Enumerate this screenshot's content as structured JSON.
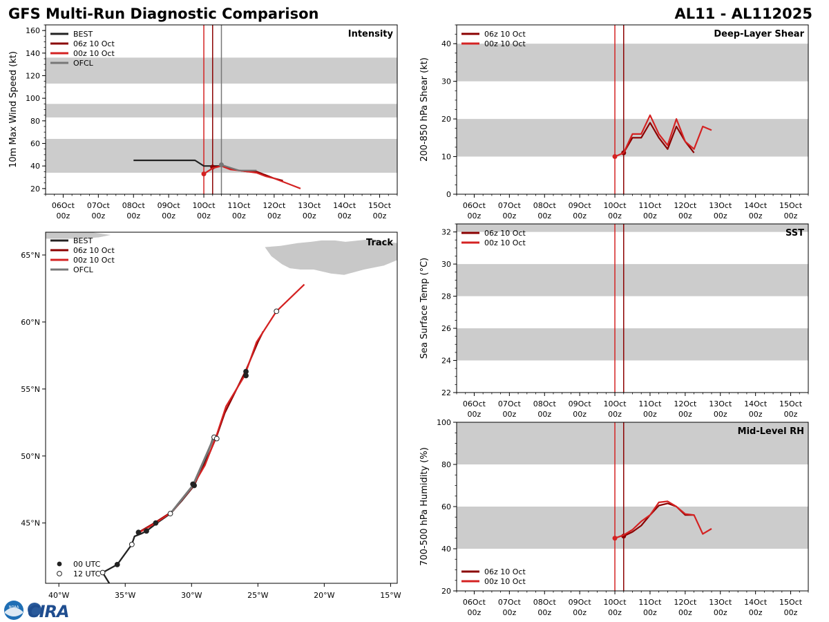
{
  "header": {
    "title": "GFS Multi-Run Diagnostic Comparison",
    "storm_id": "AL11 - AL112025"
  },
  "logos": {
    "noaa": "NOAA",
    "cira": "CIRA"
  },
  "colors": {
    "best": "#222222",
    "run_06z": "#8b0000",
    "run_00z": "#d42222",
    "ofcl": "#777777",
    "band": "#cccccc",
    "land": "#c8c8c8"
  },
  "time_axis": {
    "ticks": [
      "06Oct",
      "07Oct",
      "08Oct",
      "09Oct",
      "10Oct",
      "11Oct",
      "12Oct",
      "13Oct",
      "14Oct",
      "15Oct"
    ],
    "sublabel": "00z",
    "note": "x values are days since 06Oct 00z"
  },
  "chart_data": [
    {
      "id": "intensity",
      "type": "line",
      "title": "Intensity",
      "ylabel": "10m Max Wind Speed (kt)",
      "xlim": [
        -0.5,
        9.5
      ],
      "ylim": [
        15,
        165
      ],
      "yticks": [
        20,
        40,
        60,
        80,
        100,
        120,
        140,
        160
      ],
      "bands": [
        [
          34,
          64
        ],
        [
          83,
          95
        ],
        [
          113,
          136
        ]
      ],
      "vlines": [
        {
          "x": 4.0,
          "series": "run_00z"
        },
        {
          "x": 4.25,
          "series": "run_06z"
        },
        {
          "x": 4.5,
          "series": "ofcl"
        }
      ],
      "legend": [
        {
          "label": "BEST",
          "series": "best"
        },
        {
          "label": "06z 10 Oct",
          "series": "run_06z"
        },
        {
          "label": "00z 10 Oct",
          "series": "run_00z"
        },
        {
          "label": "OFCL",
          "series": "ofcl"
        }
      ],
      "series": [
        {
          "name": "BEST",
          "key": "best",
          "x": [
            2.0,
            2.25,
            2.5,
            2.75,
            3.0,
            3.25,
            3.5,
            3.75,
            4.0,
            4.25,
            4.5
          ],
          "y": [
            45,
            45,
            45,
            45,
            45,
            45,
            45,
            45,
            40,
            40,
            40
          ]
        },
        {
          "name": "06z 10 Oct",
          "key": "run_06z",
          "x": [
            4.25,
            4.5,
            4.75,
            5.0,
            5.25,
            5.5,
            5.75,
            6.0,
            6.25
          ],
          "y": [
            39,
            40,
            38,
            36,
            35,
            35,
            32,
            29,
            27
          ],
          "marker": true
        },
        {
          "name": "00z 10 Oct",
          "key": "run_00z",
          "x": [
            4.0,
            4.25,
            4.5,
            4.75,
            5.0,
            5.25,
            5.5,
            5.75,
            6.0,
            6.25,
            6.5,
            6.75
          ],
          "y": [
            33,
            38,
            40,
            37,
            36,
            35,
            34,
            31,
            29,
            26,
            23,
            20
          ],
          "marker": true
        },
        {
          "name": "OFCL",
          "key": "ofcl",
          "x": [
            4.5,
            5.0,
            5.5
          ],
          "y": [
            41,
            36,
            36
          ],
          "marker": true
        }
      ]
    },
    {
      "id": "shear",
      "type": "line",
      "title": "Deep-Layer Shear",
      "ylabel": "200-850 hPa Shear (kt)",
      "xlim": [
        -0.5,
        9.5
      ],
      "ylim": [
        0,
        45
      ],
      "yticks": [
        0,
        10,
        20,
        30,
        40
      ],
      "bands": [
        [
          10,
          20
        ],
        [
          30,
          40
        ]
      ],
      "vlines": [
        {
          "x": 4.0,
          "series": "run_00z"
        },
        {
          "x": 4.25,
          "series": "run_06z"
        }
      ],
      "legend": [
        {
          "label": "06z 10 Oct",
          "series": "run_06z"
        },
        {
          "label": "00z 10 Oct",
          "series": "run_00z"
        }
      ],
      "series": [
        {
          "name": "06z 10 Oct",
          "key": "run_06z",
          "x": [
            4.25,
            4.5,
            4.75,
            5.0,
            5.25,
            5.5,
            5.75,
            6.0,
            6.25
          ],
          "y": [
            11,
            15,
            15,
            19,
            15,
            12,
            18,
            14,
            11
          ],
          "marker": true
        },
        {
          "name": "00z 10 Oct",
          "key": "run_00z",
          "x": [
            4.0,
            4.25,
            4.5,
            4.75,
            5.0,
            5.25,
            5.5,
            5.75,
            6.0,
            6.25,
            6.5,
            6.75
          ],
          "y": [
            10,
            11,
            16,
            16,
            21,
            16,
            13,
            20,
            14,
            12,
            18,
            17
          ],
          "marker": true
        }
      ]
    },
    {
      "id": "sst",
      "type": "line",
      "title": "SST",
      "ylabel": "Sea Surface Temp (°C)",
      "xlim": [
        -0.5,
        9.5
      ],
      "ylim": [
        22,
        32.5
      ],
      "yticks": [
        22,
        24,
        26,
        28,
        30,
        32
      ],
      "bands": [
        [
          24,
          26
        ],
        [
          28,
          30
        ],
        [
          32,
          32.5
        ]
      ],
      "vlines": [
        {
          "x": 4.0,
          "series": "run_00z"
        },
        {
          "x": 4.25,
          "series": "run_06z"
        }
      ],
      "legend": [
        {
          "label": "06z 10 Oct",
          "series": "run_06z"
        },
        {
          "label": "00z 10 Oct",
          "series": "run_00z"
        }
      ],
      "series": []
    },
    {
      "id": "rh",
      "type": "line",
      "title": "Mid-Level RH",
      "ylabel": "700-500 hPa Humidity (%)",
      "xlim": [
        -0.5,
        9.5
      ],
      "ylim": [
        20,
        100
      ],
      "yticks": [
        20,
        40,
        60,
        80,
        100
      ],
      "bands": [
        [
          40,
          60
        ],
        [
          80,
          100
        ]
      ],
      "vlines": [
        {
          "x": 4.0,
          "series": "run_00z"
        },
        {
          "x": 4.25,
          "series": "run_06z"
        }
      ],
      "legend": [
        {
          "label": "06z 10 Oct",
          "series": "run_06z"
        },
        {
          "label": "00z 10 Oct",
          "series": "run_00z"
        }
      ],
      "series": [
        {
          "name": "06z 10 Oct",
          "key": "run_06z",
          "x": [
            4.25,
            4.5,
            4.75,
            5.0,
            5.25,
            5.5,
            5.75,
            6.0,
            6.25
          ],
          "y": [
            46,
            48,
            51,
            56,
            60.5,
            61.5,
            60,
            56,
            56
          ],
          "marker": true
        },
        {
          "name": "00z 10 Oct",
          "key": "run_00z",
          "x": [
            4.0,
            4.25,
            4.5,
            4.75,
            5.0,
            5.25,
            5.5,
            5.75,
            6.0,
            6.25,
            6.5,
            6.75
          ],
          "y": [
            45,
            46.5,
            49,
            53,
            56,
            62,
            62.5,
            60,
            56.5,
            56,
            47,
            49.5
          ],
          "marker": true
        }
      ]
    },
    {
      "id": "track",
      "type": "scatter",
      "title": "Track",
      "xlim": [
        -41,
        -14.5
      ],
      "ylim": [
        40.5,
        66.7
      ],
      "xticks": [
        -40,
        -35,
        -30,
        -25,
        -20,
        -15
      ],
      "xtick_labels": [
        "40°W",
        "35°W",
        "30°W",
        "25°W",
        "20°W",
        "15°W"
      ],
      "yticks": [
        45,
        50,
        55,
        60,
        65
      ],
      "ytick_labels": [
        "45°N",
        "50°N",
        "55°N",
        "60°N",
        "65°N"
      ],
      "legend": [
        {
          "label": "BEST",
          "series": "best"
        },
        {
          "label": "06z 10 Oct",
          "series": "run_06z"
        },
        {
          "label": "00z 10 Oct",
          "series": "run_00z"
        },
        {
          "label": "OFCL",
          "series": "ofcl"
        }
      ],
      "marker_legend": [
        "00 UTC",
        "12 UTC"
      ],
      "series": [
        {
          "name": "BEST",
          "key": "best",
          "lon": [
            -36.2,
            -36.7,
            -35.6,
            -34.5,
            -34.3,
            -33.8,
            -33.4,
            -32.6,
            -31.6,
            -30.7,
            -29.8,
            -29.0,
            -28.4,
            -28.2
          ],
          "lat": [
            40.5,
            41.3,
            41.9,
            43.4,
            44.0,
            44.2,
            44.4,
            45.0,
            45.7,
            46.7,
            47.8,
            49.6,
            51.3,
            51.5
          ]
        },
        {
          "name": "06z 10 Oct",
          "key": "run_06z",
          "lon": [
            -34.0,
            -32.8,
            -31.4,
            -29.9,
            -28.9,
            -28.1,
            -27.5,
            -25.9,
            -25.0,
            -24.6
          ],
          "lat": [
            44.3,
            45.0,
            45.9,
            47.7,
            49.6,
            51.5,
            53.2,
            56.4,
            58.5,
            59.3
          ]
        },
        {
          "name": "00z 10 Oct",
          "key": "run_00z",
          "lon": [
            -34.1,
            -32.7,
            -31.5,
            -30.0,
            -29.0,
            -28.1,
            -27.4,
            -26.0,
            -25.1,
            -23.6,
            -21.5
          ],
          "lat": [
            44.2,
            45.0,
            45.8,
            47.6,
            49.3,
            51.6,
            53.7,
            56.0,
            58.5,
            60.8,
            62.8
          ]
        },
        {
          "name": "OFCL",
          "key": "ofcl",
          "lon": [
            -31.6,
            -29.9,
            -28.3
          ],
          "lat": [
            45.7,
            47.8,
            51.4
          ]
        }
      ],
      "points": [
        {
          "lon": -36.7,
          "lat": 41.3,
          "hour": "12"
        },
        {
          "lon": -35.6,
          "lat": 41.9,
          "hour": "00"
        },
        {
          "lon": -34.5,
          "lat": 43.4,
          "hour": "12"
        },
        {
          "lon": -34.0,
          "lat": 44.3,
          "hour": "00"
        },
        {
          "lon": -33.4,
          "lat": 44.4,
          "hour": "00"
        },
        {
          "lon": -32.7,
          "lat": 45.0,
          "hour": "00"
        },
        {
          "lon": -31.6,
          "lat": 45.7,
          "hour": "12"
        },
        {
          "lon": -29.8,
          "lat": 47.8,
          "hour": "00"
        },
        {
          "lon": -29.9,
          "lat": 47.9,
          "hour": "00"
        },
        {
          "lon": -28.3,
          "lat": 51.4,
          "hour": "12"
        },
        {
          "lon": -28.1,
          "lat": 51.3,
          "hour": "12"
        },
        {
          "lon": -25.9,
          "lat": 56.3,
          "hour": "00"
        },
        {
          "lon": -25.9,
          "lat": 56.0,
          "hour": "00"
        },
        {
          "lon": -23.6,
          "lat": 60.8,
          "hour": "12"
        }
      ],
      "land": [
        {
          "name": "iceland",
          "lon": [
            -24.5,
            -23.3,
            -22.0,
            -21.0,
            -20.2,
            -19.2,
            -18.4,
            -17.4,
            -16.4,
            -15.3,
            -14.5,
            -14.5,
            -15.5,
            -17.0,
            -18.5,
            -19.5,
            -20.8,
            -21.8,
            -22.6,
            -23.2,
            -24.0,
            -24.5
          ],
          "lat": [
            65.6,
            65.7,
            65.9,
            66.0,
            66.1,
            66.1,
            66.0,
            66.1,
            66.2,
            66.0,
            65.9,
            64.6,
            64.2,
            63.9,
            63.5,
            63.6,
            63.9,
            63.9,
            64.0,
            64.3,
            64.9,
            65.6
          ]
        },
        {
          "name": "greenland",
          "lon": [
            -41,
            -37.5,
            -36.0,
            -37.0,
            -38.5,
            -41
          ],
          "lat": [
            66.7,
            66.7,
            66.5,
            66.3,
            66.2,
            66.2
          ]
        }
      ]
    }
  ]
}
